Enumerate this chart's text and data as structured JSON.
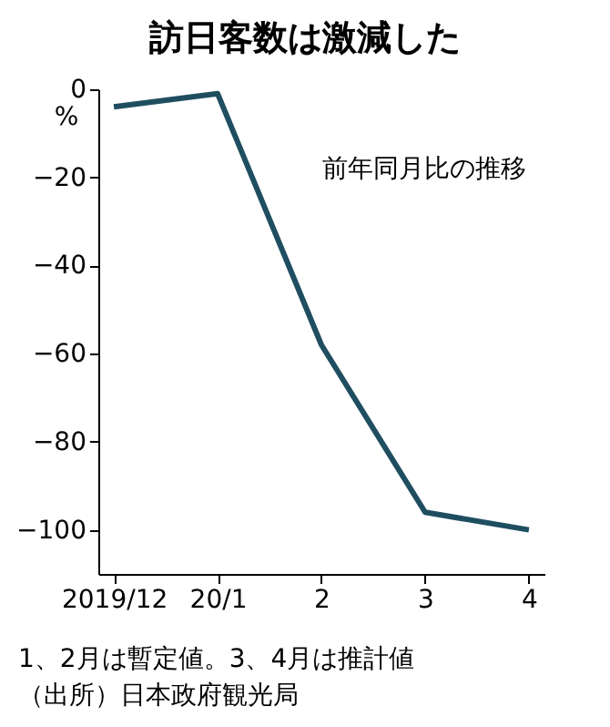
{
  "chart_data": {
    "type": "line",
    "title": "訪日客数は激減した",
    "ylabel": "%",
    "categories": [
      "2019/12",
      "20/1",
      "2",
      "3",
      "4"
    ],
    "series": [
      {
        "color": "#1f4e60",
        "values": [
          -4,
          -1,
          -58,
          -96,
          -100
        ]
      }
    ],
    "ylim": [
      -110,
      0
    ],
    "yticks": [
      0,
      -20,
      -40,
      -60,
      -80,
      -100
    ],
    "grid": false,
    "marker": "none",
    "line_style": "solid",
    "annotations": [
      "前年同月比の推移",
      "1、2月は暫定値。3、4月は推計値",
      "（出所）日本政府観光局"
    ]
  }
}
